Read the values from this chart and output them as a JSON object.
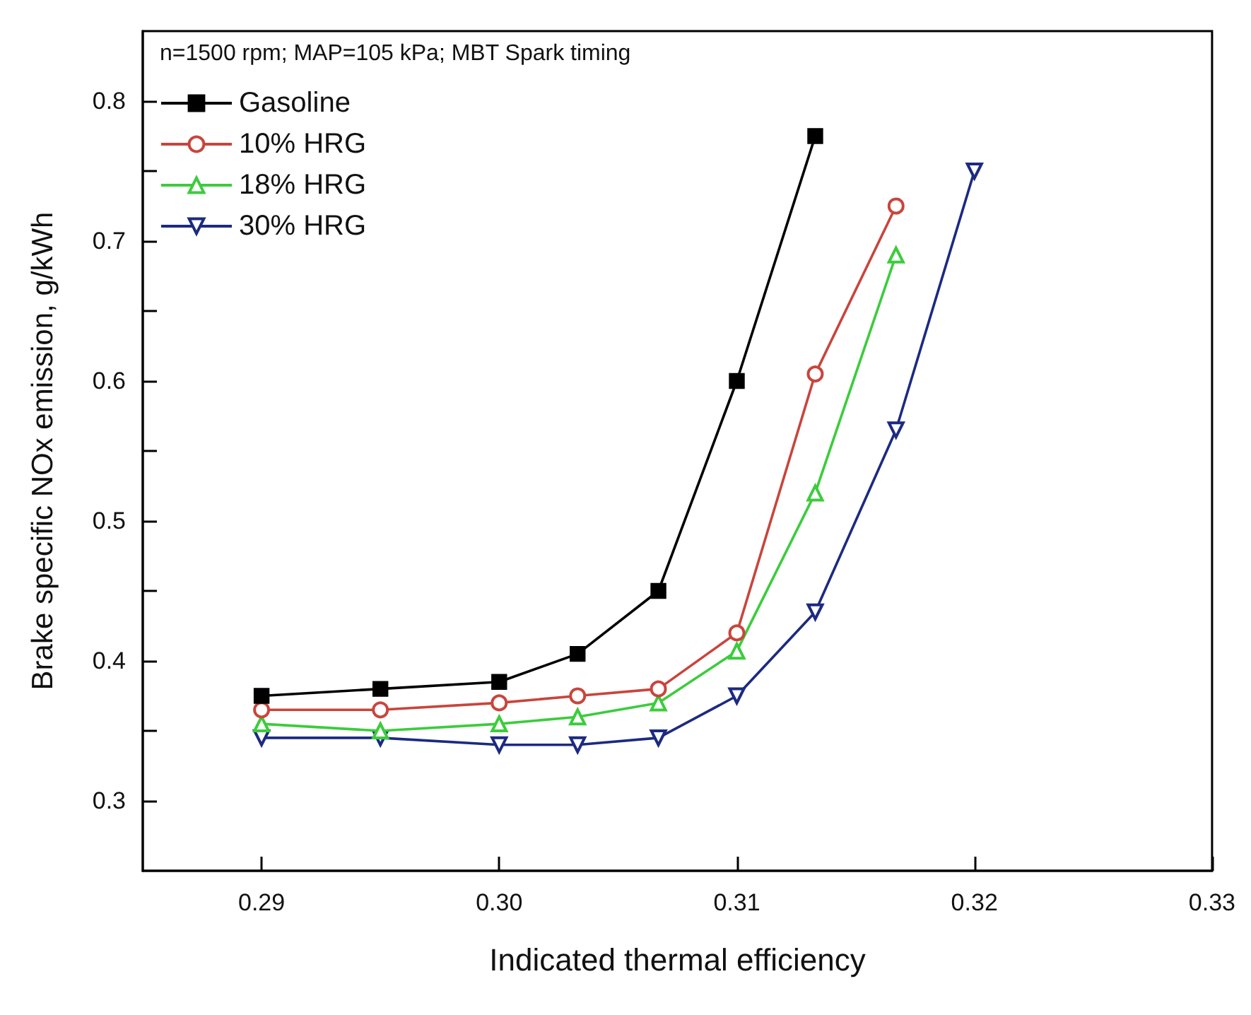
{
  "chart_data": {
    "type": "line",
    "xlabel": "Indicated thermal efficiency",
    "ylabel": "Brake specific NOx emission, g/kWh",
    "annotations": [
      "n=1500 rpm; MAP=105 kPa; MBT Spark timing"
    ],
    "series": [
      {
        "name": "Gasoline",
        "color": "#000000",
        "marker": "square",
        "x": [
          0.29,
          0.295,
          0.3,
          0.3033,
          0.3067,
          0.31,
          0.3133
        ],
        "values": [
          0.375,
          0.38,
          0.385,
          0.405,
          0.45,
          0.6,
          0.775
        ]
      },
      {
        "name": "10% HRG",
        "color": "#c8453c",
        "marker": "circle",
        "x": [
          0.29,
          0.295,
          0.3,
          0.3033,
          0.3067,
          0.31,
          0.3133,
          0.3167
        ],
        "values": [
          0.365,
          0.365,
          0.37,
          0.375,
          0.38,
          0.42,
          0.605,
          0.725
        ]
      },
      {
        "name": "18% HRG",
        "color": "#3ccc3c",
        "marker": "triangle",
        "x": [
          0.29,
          0.295,
          0.3,
          0.3033,
          0.3067,
          0.31,
          0.3133,
          0.3167
        ],
        "values": [
          0.355,
          0.35,
          0.355,
          0.36,
          0.37,
          0.407,
          0.52,
          0.69
        ]
      },
      {
        "name": "30% HRG",
        "color": "#1c2a80",
        "marker": "triangle_down",
        "x": [
          0.29,
          0.295,
          0.3,
          0.3033,
          0.3067,
          0.31,
          0.3133,
          0.3167,
          0.32
        ],
        "values": [
          0.345,
          0.345,
          0.34,
          0.34,
          0.345,
          0.375,
          0.435,
          0.565,
          0.75
        ]
      }
    ],
    "xlim": [
      0.285,
      0.33
    ],
    "xticks": [
      0.29,
      {
        "value": 0.3,
        "label": "0.30"
      },
      0.31,
      0.32,
      0.33
    ],
    "ylim": [
      0.25,
      0.85
    ],
    "yticks": [
      0.3,
      {
        "value": 0.35,
        "label": null
      },
      0.4,
      {
        "value": 0.45,
        "label": null
      },
      0.5,
      {
        "value": 0.55,
        "label": null
      },
      0.6,
      {
        "value": 0.65,
        "label": null
      },
      0.7,
      {
        "value": 0.75,
        "label": null
      },
      0.8
    ],
    "legend": "top left",
    "grid": false,
    "line_style": "solid"
  }
}
